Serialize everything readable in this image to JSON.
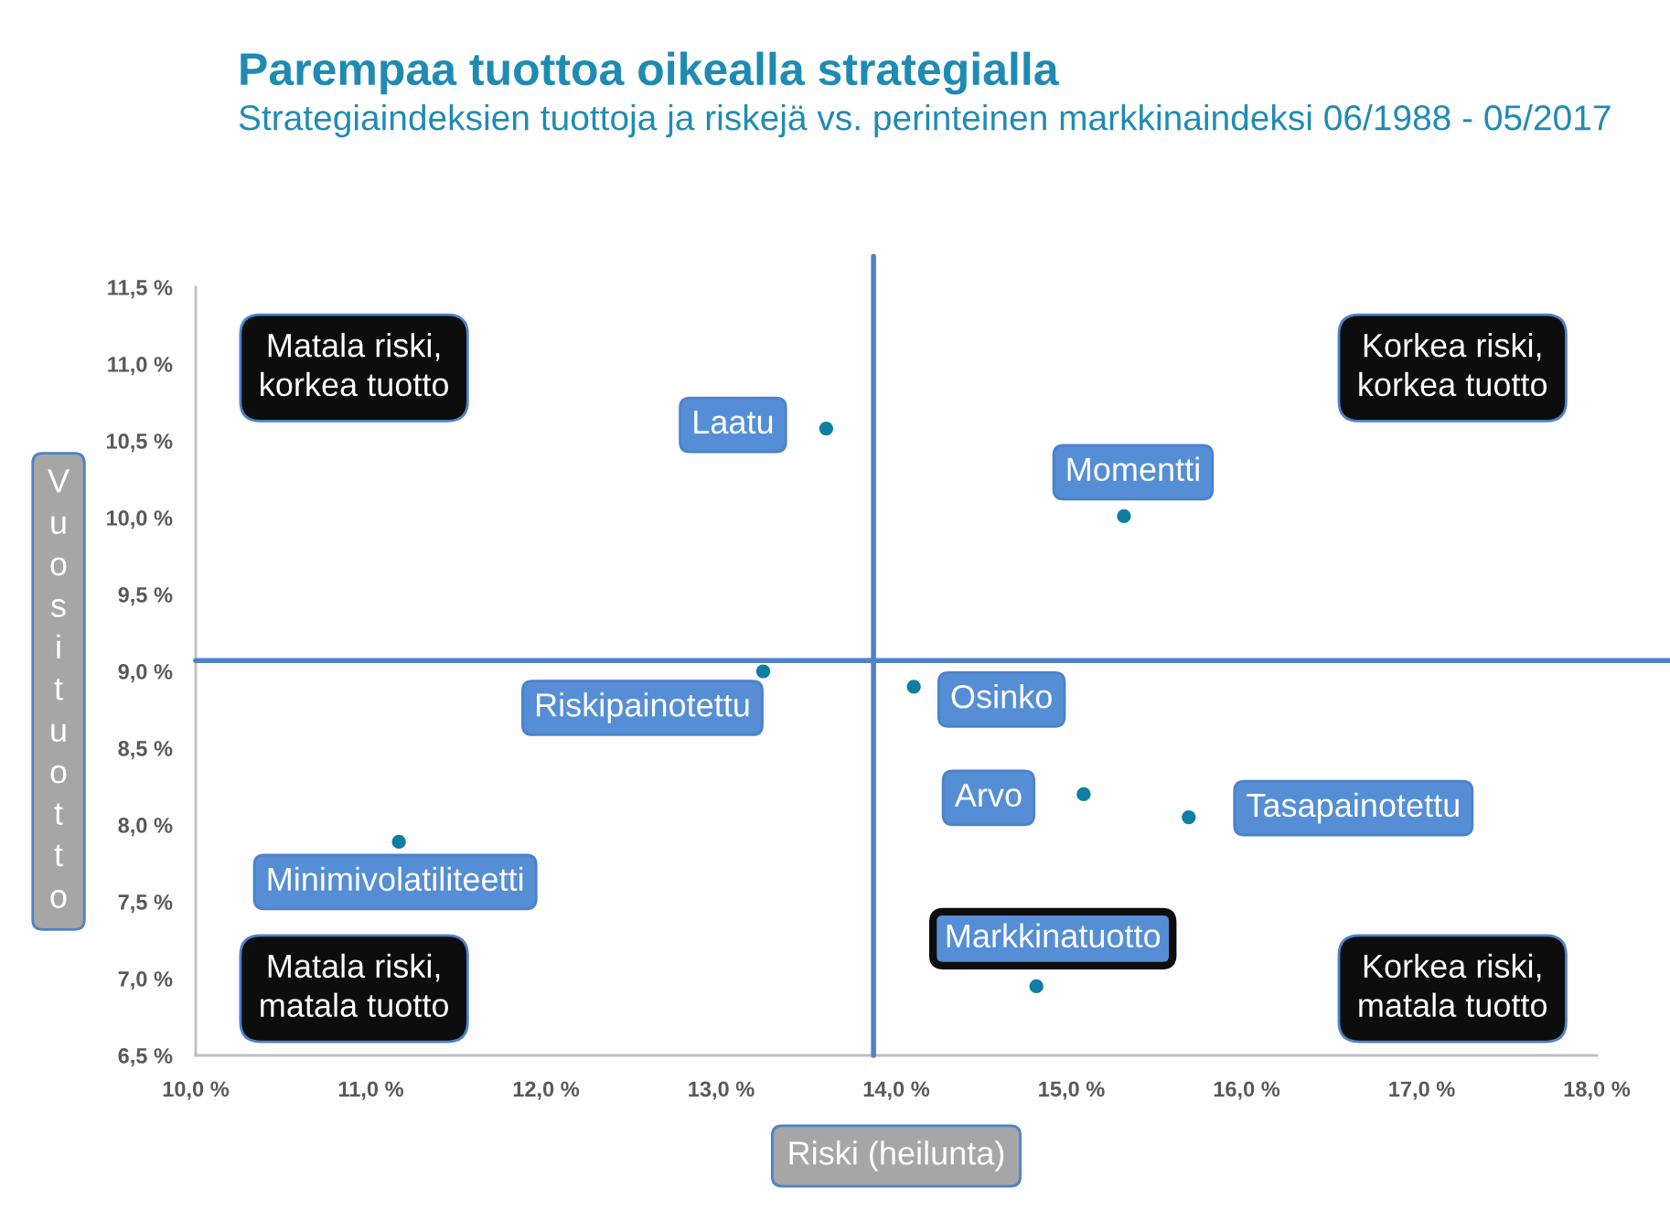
{
  "chart_data": {
    "type": "scatter",
    "title": "Parempaa tuottoa oikealla strategialla",
    "subtitle": "Strategiaindeksien tuottoja ja riskejä vs. perinteinen markkinaindeksi 06/1988 - 05/2017",
    "xlabel": "Riski (heilunta)",
    "ylabel": "Vuosituotto",
    "xlim": [
      10,
      18
    ],
    "xticks": [
      {
        "value": 10,
        "label": "10,0 %"
      },
      {
        "value": 11,
        "label": "11,0 %"
      },
      {
        "value": 12,
        "label": "12,0 %"
      },
      {
        "value": 13,
        "label": "13,0 %"
      },
      {
        "value": 14,
        "label": "14,0 %"
      },
      {
        "value": 15,
        "label": "15,0 %"
      },
      {
        "value": 16,
        "label": "16,0 %"
      },
      {
        "value": 17,
        "label": "17,0 %"
      },
      {
        "value": 18,
        "label": "18,0 %"
      }
    ],
    "ylim": [
      6.5,
      11.5
    ],
    "yticks": [
      {
        "value": 6.5,
        "label": "6,5 %"
      },
      {
        "value": 7,
        "label": "7,0 %"
      },
      {
        "value": 7.5,
        "label": "7,5 %"
      },
      {
        "value": 8,
        "label": "8,0 %"
      },
      {
        "value": 8.5,
        "label": "8,5 %"
      },
      {
        "value": 9,
        "label": "9,0 %"
      },
      {
        "value": 9.5,
        "label": "9,5 %"
      },
      {
        "value": 10,
        "label": "10,0 %"
      },
      {
        "value": 10.5,
        "label": "10,5 %"
      },
      {
        "value": 11,
        "label": "11,0 %"
      },
      {
        "value": 11.5,
        "label": "11,5 %"
      }
    ],
    "marker": "circle",
    "series": [
      {
        "name": "Laatu",
        "color": "#0e7fa3",
        "x": [
          13.6
        ],
        "values": [
          10.58
        ]
      },
      {
        "name": "Momentti",
        "color": "#0e7fa3",
        "x": [
          15.3
        ],
        "values": [
          10.01
        ]
      },
      {
        "name": "Riskipainotettu",
        "color": "#0e7fa3",
        "x": [
          13.24
        ],
        "values": [
          9.0
        ]
      },
      {
        "name": "Osinko",
        "color": "#0e7fa3",
        "x": [
          14.1
        ],
        "values": [
          8.9
        ]
      },
      {
        "name": "Arvo",
        "color": "#0e7fa3",
        "x": [
          15.07
        ],
        "values": [
          8.2
        ]
      },
      {
        "name": "Tasapainotettu",
        "color": "#0e7fa3",
        "x": [
          15.67
        ],
        "values": [
          8.05
        ]
      },
      {
        "name": "Minimivolatiliteetti",
        "color": "#0e7fa3",
        "x": [
          11.16
        ],
        "values": [
          7.89
        ]
      },
      {
        "name": "Markkinatuotto",
        "color": "#0e7fa3",
        "x": [
          14.8
        ],
        "values": [
          6.95
        ]
      }
    ],
    "ref_lines": [
      {
        "axis": "x",
        "value": 13.87,
        "color": "#4f81c7"
      },
      {
        "axis": "y",
        "value": 9.07,
        "color": "#4f81c7"
      }
    ],
    "annotations": [
      "Matala riski,\nkorkea tuotto",
      "Korkea riski,\nkorkea tuotto",
      "Matala riski,\nmatala tuotto",
      "Korkea riski,\nmatala tuotto"
    ]
  }
}
